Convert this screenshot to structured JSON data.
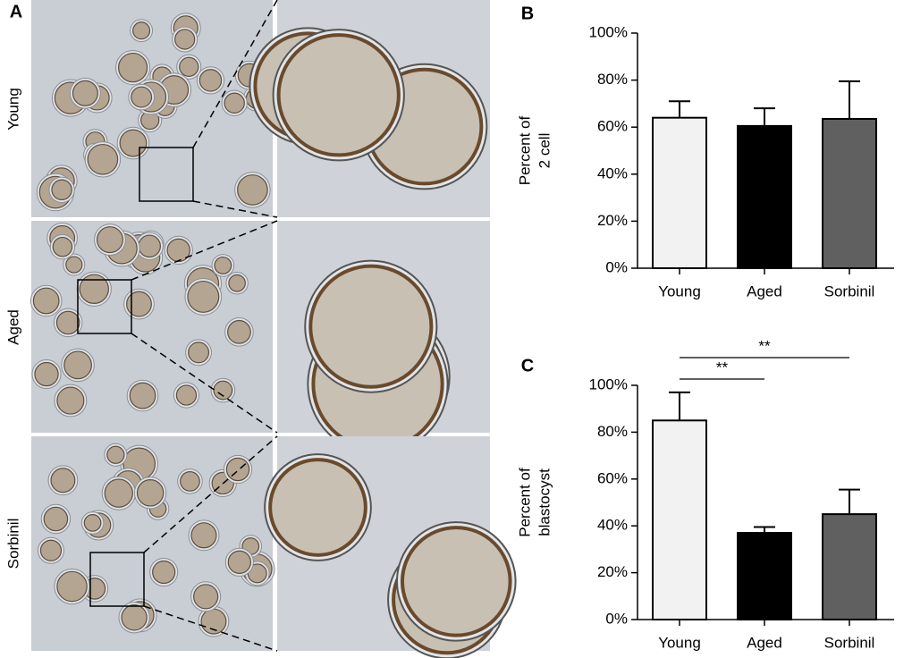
{
  "figure": {
    "panel_labels": [
      "A",
      "B",
      "C"
    ],
    "row_labels": [
      "Young",
      "Aged",
      "Sorbinil"
    ]
  },
  "chart_data": [
    {
      "type": "bar",
      "ylabel_lines": [
        "Percent of",
        "2 cell"
      ],
      "categories": [
        "Young",
        "Aged",
        "Sorbinil"
      ],
      "values": [
        64,
        60.5,
        63.5
      ],
      "errors": [
        7,
        7.5,
        16
      ],
      "colors": [
        "#f2f2f2",
        "#000000",
        "#606060"
      ],
      "ylim": [
        0,
        100
      ],
      "yticks": [
        {
          "value": 0,
          "label": "0%"
        },
        {
          "value": 20,
          "label": "20%"
        },
        {
          "value": 40,
          "label": "40%"
        },
        {
          "value": 60,
          "label": "60%"
        },
        {
          "value": 80,
          "label": "80%"
        },
        {
          "value": 100,
          "label": "100%"
        }
      ]
    },
    {
      "type": "bar",
      "ylabel_lines": [
        "Percent of",
        "blastocyst"
      ],
      "categories": [
        "Young",
        "Aged",
        "Sorbinil"
      ],
      "values": [
        85,
        37,
        45
      ],
      "errors": [
        12,
        2.5,
        10.5
      ],
      "colors": [
        "#f2f2f2",
        "#000000",
        "#606060"
      ],
      "ylim": [
        0,
        100
      ],
      "yticks": [
        {
          "value": 0,
          "label": "0%"
        },
        {
          "value": 20,
          "label": "20%"
        },
        {
          "value": 40,
          "label": "40%"
        },
        {
          "value": 60,
          "label": "60%"
        },
        {
          "value": 80,
          "label": "80%"
        },
        {
          "value": 100,
          "label": "100%"
        }
      ],
      "annotations": [
        {
          "text": "**",
          "from": 0,
          "to": 1
        },
        {
          "text": "**",
          "from": 0,
          "to": 2
        }
      ]
    }
  ]
}
